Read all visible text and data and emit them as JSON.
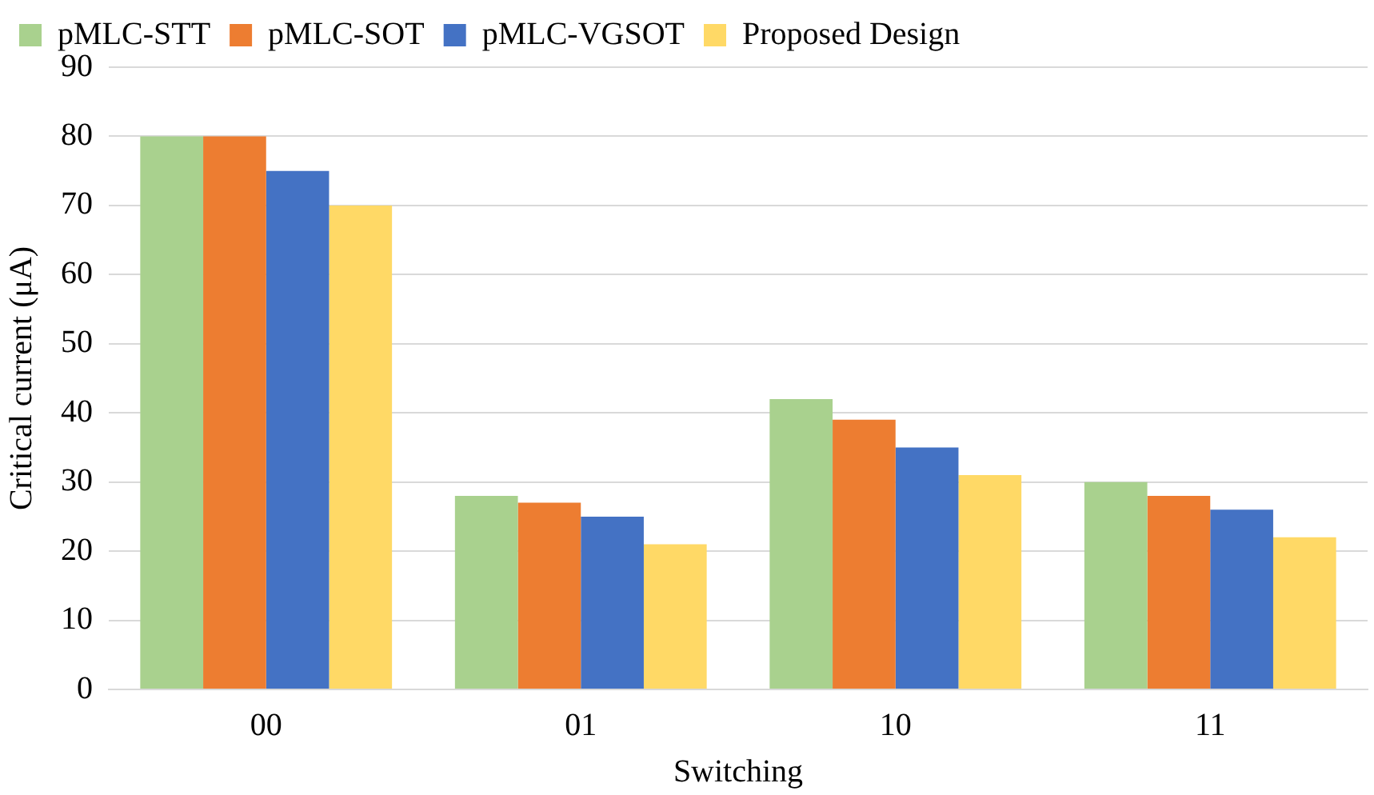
{
  "chart_data": {
    "type": "bar",
    "xlabel": "Switching",
    "ylabel": "Critical current (μA)",
    "categories": [
      "00",
      "01",
      "10",
      "11"
    ],
    "series": [
      {
        "name": "pMLC-STT",
        "color": "#a9d18e",
        "values": [
          80,
          28,
          42,
          30
        ]
      },
      {
        "name": "pMLC-SOT",
        "color": "#ed7d31",
        "values": [
          80,
          27,
          39,
          28
        ]
      },
      {
        "name": "pMLC-VGSOT",
        "color": "#4472c4",
        "values": [
          75,
          25,
          35,
          26
        ]
      },
      {
        "name": "Proposed Design",
        "color": "#ffd966",
        "values": [
          70,
          21,
          31,
          22
        ]
      }
    ],
    "ylim": [
      0,
      90
    ],
    "yticks": [
      0,
      10,
      20,
      30,
      40,
      50,
      60,
      70,
      80,
      90
    ],
    "grid": "y",
    "legend": "top left"
  }
}
